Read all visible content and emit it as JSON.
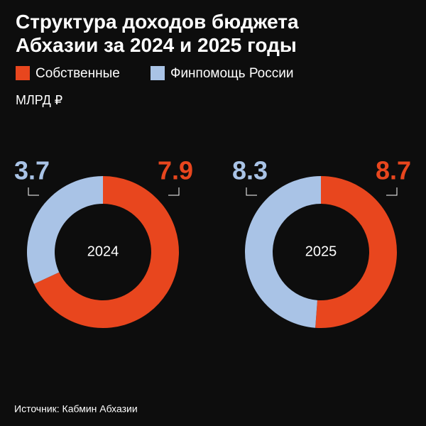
{
  "chart_data": {
    "type": "donut",
    "title": "Структура доходов  бюджета Абхазии за 2024 и 2025 годы",
    "unit": "МЛРД ₽",
    "source": "Источник: Кабмин Абхазии",
    "categories": [
      "2024",
      "2025"
    ],
    "series": [
      {
        "name": "Собственные",
        "color": "#e8461e",
        "values": [
          7.9,
          8.7
        ]
      },
      {
        "name": "Финпомощь России",
        "color": "#a9c3e6",
        "values": [
          3.7,
          8.3
        ]
      }
    ]
  }
}
